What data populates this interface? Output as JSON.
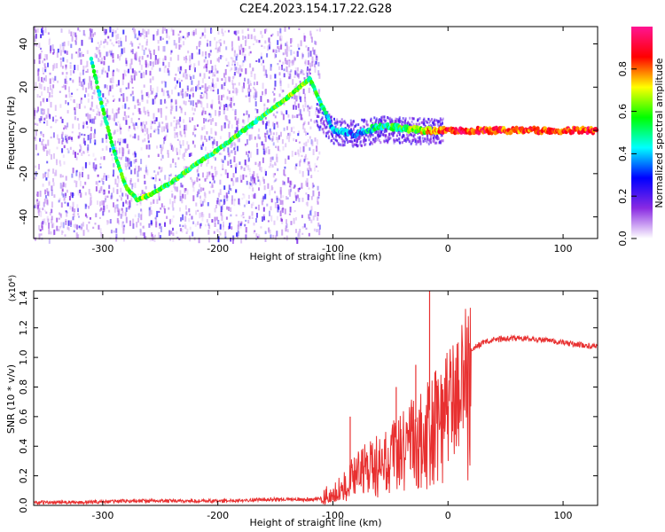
{
  "chart_data": [
    {
      "type": "heatmap",
      "title": "C2E4.2023.154.17.22.G28",
      "xlabel": "Height of straight line (km)",
      "ylabel": "Frequency (Hz)",
      "xlim": [
        -360,
        130
      ],
      "ylim": [
        -50,
        48
      ],
      "xticks": [
        -300,
        -200,
        -100,
        0,
        100
      ],
      "yticks": [
        -40,
        -20,
        0,
        20,
        40
      ],
      "grid": false,
      "colorbar": {
        "label": "Normalized spectral amplitude",
        "range": [
          0.0,
          1.0
        ],
        "ticks": [
          0.0,
          0.2,
          0.4,
          0.6,
          0.8
        ],
        "colormap": [
          "#ffffff",
          "#8a2be2",
          "#0000ff",
          "#00ffff",
          "#00ff00",
          "#ffff00",
          "#ff0000",
          "#ff1493"
        ]
      },
      "ridge": {
        "x": [
          -310,
          -300,
          -290,
          -280,
          -270,
          -260,
          -240,
          -220,
          -200,
          -180,
          -160,
          -140,
          -120,
          -100,
          -80,
          -60,
          -40,
          -20,
          0,
          50,
          130
        ],
        "y": [
          33,
          10,
          -10,
          -26,
          -32,
          -30,
          -24,
          -16,
          -9,
          -1,
          7,
          15,
          24,
          0,
          -2,
          2,
          1,
          0,
          0,
          0,
          0
        ],
        "amplitude": [
          0.45,
          0.5,
          0.5,
          0.55,
          0.6,
          0.6,
          0.55,
          0.55,
          0.55,
          0.55,
          0.55,
          0.6,
          0.6,
          0.35,
          0.3,
          0.5,
          0.55,
          0.7,
          0.9,
          0.85,
          0.85
        ]
      }
    },
    {
      "type": "line",
      "title": "",
      "xlabel": "Height of straight line (km)",
      "ylabel": "SNR (10 * v/v)",
      "yscale_label": "(x10⁴)",
      "xlim": [
        -360,
        130
      ],
      "ylim": [
        0,
        1.45
      ],
      "xticks": [
        -300,
        -200,
        -100,
        0,
        100
      ],
      "yticks": [
        0.0,
        0.2,
        0.4,
        0.6,
        0.8,
        1.0,
        1.2,
        1.4
      ],
      "grid": false,
      "series": [
        {
          "color": "#e83030",
          "x": [
            -360,
            -320,
            -280,
            -240,
            -200,
            -160,
            -120,
            -110,
            -100,
            -90,
            -80,
            -70,
            -60,
            -50,
            -40,
            -30,
            -20,
            -15,
            -10,
            -5,
            0,
            10,
            20,
            30,
            40,
            60,
            80,
            100,
            120,
            130
          ],
          "y": [
            0.02,
            0.02,
            0.03,
            0.03,
            0.03,
            0.04,
            0.04,
            0.05,
            0.08,
            0.15,
            0.25,
            0.3,
            0.35,
            0.4,
            0.45,
            0.55,
            0.62,
            0.65,
            0.7,
            0.75,
            0.8,
            0.95,
            1.05,
            1.1,
            1.12,
            1.13,
            1.12,
            1.1,
            1.08,
            1.07
          ]
        }
      ],
      "spikes": [
        {
          "x": -16,
          "y": 1.45
        },
        {
          "x": 11,
          "y": 0.1
        },
        {
          "x": -28,
          "y": 0.95
        },
        {
          "x": -45,
          "y": 0.8
        },
        {
          "x": -85,
          "y": 0.6
        }
      ]
    }
  ]
}
